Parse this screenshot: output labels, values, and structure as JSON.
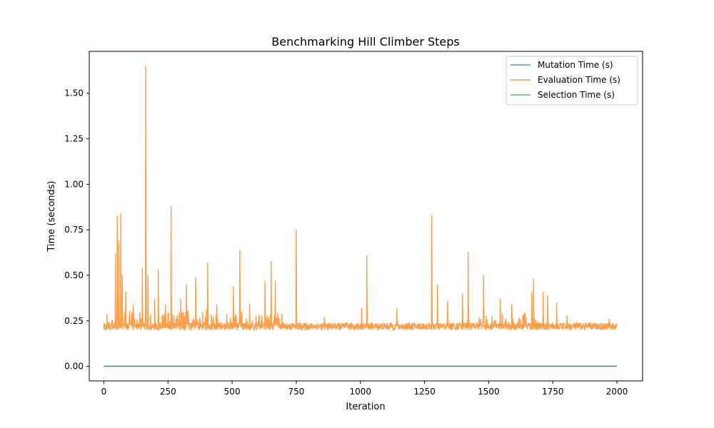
{
  "chart_data": {
    "type": "line",
    "title": "Benchmarking Hill Climber Steps",
    "xlabel": "Iteration",
    "ylabel": "Time (seconds)",
    "xlim": [
      -57,
      2100
    ],
    "ylim": [
      -0.08,
      1.73
    ],
    "xticks": [
      0,
      250,
      500,
      750,
      1000,
      1250,
      1500,
      1750,
      2000
    ],
    "xtick_labels": [
      "0",
      "250",
      "500",
      "750",
      "1000",
      "1250",
      "1500",
      "1750",
      "2000"
    ],
    "yticks": [
      0.0,
      0.25,
      0.5,
      0.75,
      1.0,
      1.25,
      1.5
    ],
    "ytick_labels": [
      "0.00",
      "0.25",
      "0.50",
      "0.75",
      "1.00",
      "1.25",
      "1.50"
    ],
    "legend_position": "top-right",
    "grid": false,
    "series": [
      {
        "name": "Mutation Time (s)",
        "color": "#1f77b4",
        "x": [
          0,
          2000
        ],
        "y": [
          0.001,
          0.001
        ]
      },
      {
        "name": "Evaluation Time (s)",
        "color": "#ff7f0e",
        "x": [
          0,
          2000
        ],
        "baseline": 0.22,
        "peaks": [
          {
            "x": 12,
            "y": 0.29
          },
          {
            "x": 45,
            "y": 0.62
          },
          {
            "x": 52,
            "y": 0.83
          },
          {
            "x": 58,
            "y": 0.69
          },
          {
            "x": 66,
            "y": 0.84
          },
          {
            "x": 72,
            "y": 0.5
          },
          {
            "x": 85,
            "y": 0.41
          },
          {
            "x": 115,
            "y": 0.34
          },
          {
            "x": 150,
            "y": 0.54
          },
          {
            "x": 163,
            "y": 1.65
          },
          {
            "x": 172,
            "y": 0.5
          },
          {
            "x": 198,
            "y": 0.37
          },
          {
            "x": 212,
            "y": 0.53
          },
          {
            "x": 240,
            "y": 0.34
          },
          {
            "x": 262,
            "y": 0.88
          },
          {
            "x": 300,
            "y": 0.37
          },
          {
            "x": 322,
            "y": 0.45
          },
          {
            "x": 358,
            "y": 0.49
          },
          {
            "x": 405,
            "y": 0.57
          },
          {
            "x": 440,
            "y": 0.34
          },
          {
            "x": 505,
            "y": 0.44
          },
          {
            "x": 530,
            "y": 0.64
          },
          {
            "x": 568,
            "y": 0.34
          },
          {
            "x": 628,
            "y": 0.47
          },
          {
            "x": 652,
            "y": 0.58
          },
          {
            "x": 668,
            "y": 0.47
          },
          {
            "x": 750,
            "y": 0.75
          },
          {
            "x": 860,
            "y": 0.27
          },
          {
            "x": 1005,
            "y": 0.32
          },
          {
            "x": 1025,
            "y": 0.61
          },
          {
            "x": 1142,
            "y": 0.32
          },
          {
            "x": 1278,
            "y": 0.83
          },
          {
            "x": 1300,
            "y": 0.45
          },
          {
            "x": 1340,
            "y": 0.36
          },
          {
            "x": 1398,
            "y": 0.4
          },
          {
            "x": 1420,
            "y": 0.63
          },
          {
            "x": 1480,
            "y": 0.5
          },
          {
            "x": 1545,
            "y": 0.37
          },
          {
            "x": 1590,
            "y": 0.34
          },
          {
            "x": 1668,
            "y": 0.41
          },
          {
            "x": 1675,
            "y": 0.48
          },
          {
            "x": 1712,
            "y": 0.41
          },
          {
            "x": 1730,
            "y": 0.39
          },
          {
            "x": 1765,
            "y": 0.35
          },
          {
            "x": 1805,
            "y": 0.28
          },
          {
            "x": 1970,
            "y": 0.26
          }
        ]
      },
      {
        "name": "Selection Time (s)",
        "color": "#2ca02c",
        "x": [
          0,
          2000
        ],
        "y": [
          0.0,
          0.0
        ]
      }
    ]
  }
}
